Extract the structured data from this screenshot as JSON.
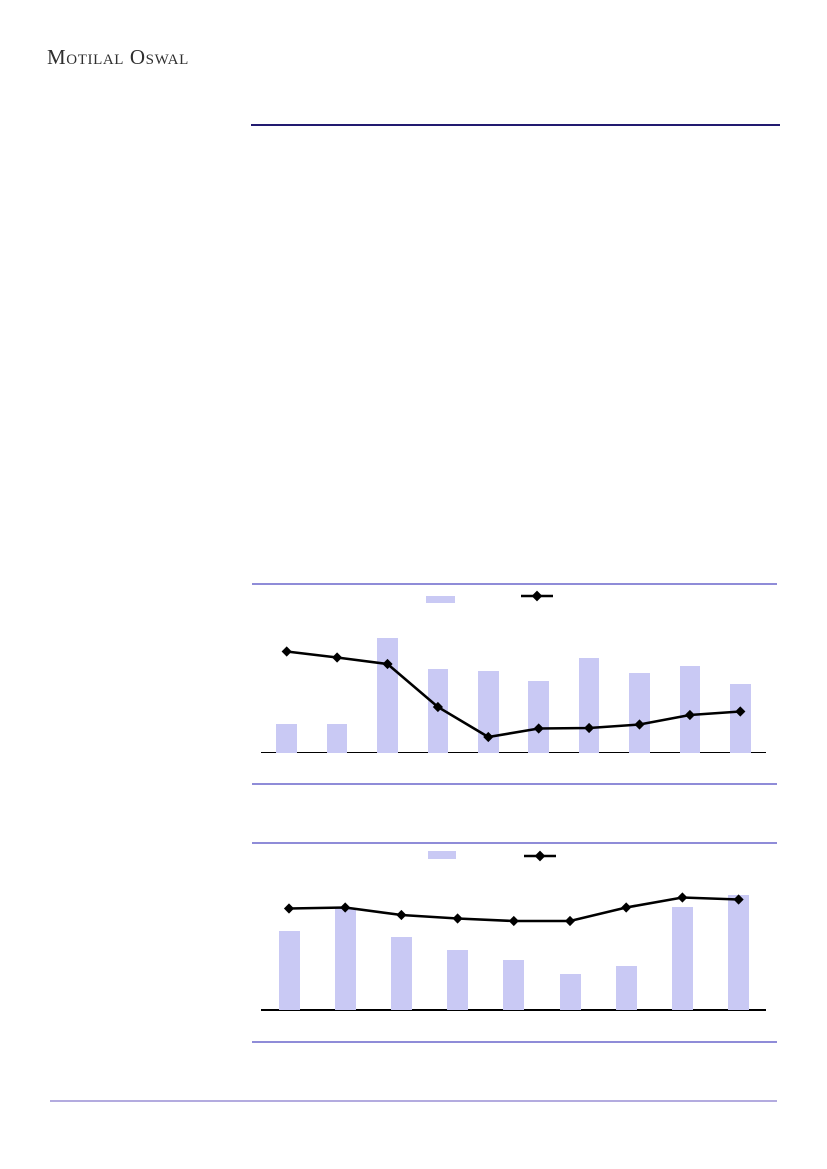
{
  "page": {
    "brand": "Motilal Oswal",
    "colors": {
      "brand_text": "#2f2f2f",
      "header_rule": "#221a70",
      "chart_rule": "#8f8cd8",
      "footer_rule": "#b3abdf",
      "bar_fill": "#c9c9f4",
      "series_line": "#000000"
    }
  },
  "chart_data": [
    {
      "type": "bar-line-combo",
      "title": "",
      "xlabel": "",
      "ylabel": "",
      "n_points": 10,
      "categories": [
        "",
        "",
        "",
        "",
        "",
        "",
        "",
        "",
        "",
        ""
      ],
      "series": [
        {
          "name": "bars",
          "type": "bar",
          "values": [
            29,
            28.5,
            114.5,
            84,
            82,
            72,
            94.5,
            79.5,
            86.5,
            68.5
          ]
        },
        {
          "name": "line",
          "type": "line",
          "values": [
            101,
            95,
            88.5,
            45.5,
            15.5,
            24,
            24.5,
            28,
            37.5,
            41
          ]
        }
      ],
      "value_units": "relative height (no axis scale, tick labels or data labels rendered)",
      "legend": {
        "position": "top-center",
        "bar_label": "",
        "line_label": "",
        "labels_visible": false
      },
      "grid": false
    },
    {
      "type": "bar-line-combo",
      "title": "",
      "xlabel": "",
      "ylabel": "",
      "n_points": 9,
      "categories": [
        "",
        "",
        "",
        "",
        "",
        "",
        "",
        "",
        ""
      ],
      "series": [
        {
          "name": "bars",
          "type": "bar",
          "values": [
            79,
            102,
            73.5,
            60,
            50,
            36.5,
            44.5,
            103.5,
            115.5
          ]
        },
        {
          "name": "line",
          "type": "line",
          "values": [
            101.5,
            102.5,
            95,
            91.5,
            89,
            89,
            102.5,
            112.5,
            110.5
          ]
        }
      ],
      "value_units": "relative height (no axis scale, tick labels or data labels rendered)",
      "legend": {
        "position": "top-center",
        "bar_label": "",
        "line_label": "",
        "labels_visible": false
      },
      "grid": false
    }
  ]
}
